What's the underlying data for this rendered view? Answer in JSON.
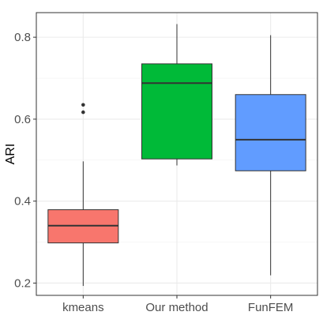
{
  "chart_data": {
    "type": "boxplot",
    "title": "",
    "xlabel": "",
    "ylabel": "ARI",
    "ylim": [
      0.17,
      0.86
    ],
    "yticks": [
      0.2,
      0.4,
      0.6,
      0.8
    ],
    "ytick_labels": [
      "0.2",
      "0.4",
      "0.6",
      "0.8"
    ],
    "grid": true,
    "categories": [
      "kmeans",
      "Our method",
      "FunFEM"
    ],
    "boxes": [
      {
        "category": "kmeans",
        "color": "#F8766D",
        "whisker_low": 0.193,
        "q1": 0.298,
        "median": 0.34,
        "q3": 0.379,
        "whisker_high": 0.497,
        "outliers": [
          0.617,
          0.635
        ]
      },
      {
        "category": "Our method",
        "color": "#00BA38",
        "whisker_low": 0.487,
        "q1": 0.503,
        "median": 0.688,
        "q3": 0.735,
        "whisker_high": 0.832,
        "outliers": []
      },
      {
        "category": "FunFEM",
        "color": "#619CFF",
        "whisker_low": 0.219,
        "q1": 0.474,
        "median": 0.55,
        "q3": 0.66,
        "whisker_high": 0.805,
        "outliers": []
      }
    ]
  }
}
